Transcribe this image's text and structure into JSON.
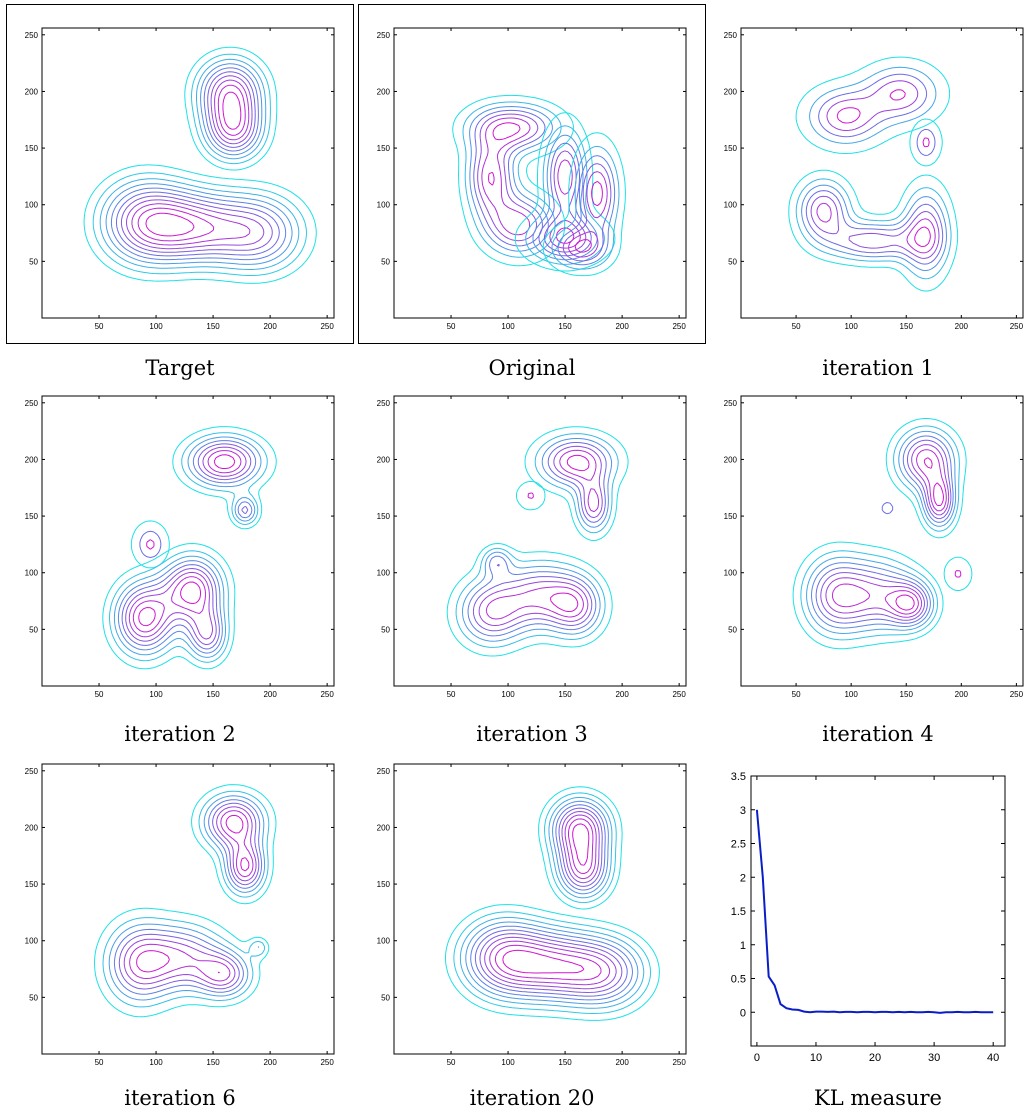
{
  "colors": {
    "outer": "#1EE1E6",
    "mid": "#6C6CE6",
    "inner": "#D214D2",
    "kl_line": "#0A1EC8"
  },
  "panels": [
    {
      "caption": "Target",
      "framed": true,
      "xticks": [
        "50",
        "100",
        "150",
        "200",
        "250"
      ],
      "yticks": [
        "50",
        "100",
        "150",
        "200",
        "250"
      ],
      "blobs": [
        {
          "levels": 11,
          "components": [
            {
              "x": 90,
              "y": 85,
              "sx": 28,
              "sy": 26,
              "w": 1.0
            },
            {
              "x": 135,
              "y": 80,
              "sx": 30,
              "sy": 22,
              "w": 0.9
            },
            {
              "x": 190,
              "y": 75,
              "sx": 28,
              "sy": 24,
              "w": 0.85
            }
          ]
        },
        {
          "levels": 10,
          "components": [
            {
              "x": 165,
              "y": 200,
              "sx": 20,
              "sy": 20,
              "w": 1.0
            },
            {
              "x": 168,
              "y": 165,
              "sx": 18,
              "sy": 18,
              "w": 0.9
            }
          ]
        }
      ]
    },
    {
      "caption": "Original",
      "framed": true,
      "xticks": [
        "50",
        "100",
        "150",
        "200",
        "250"
      ],
      "yticks": [
        "50",
        "100",
        "150",
        "200",
        "250"
      ],
      "blobs": [
        {
          "levels": 7,
          "components": [
            {
              "x": 85,
              "y": 125,
              "sx": 14,
              "sy": 24,
              "w": 1.0
            },
            {
              "x": 105,
              "y": 168,
              "sx": 26,
              "sy": 14,
              "w": 1.0
            },
            {
              "x": 110,
              "y": 82,
              "sx": 20,
              "sy": 18,
              "w": 0.95
            }
          ]
        },
        {
          "levels": 7,
          "components": [
            {
              "x": 150,
              "y": 125,
              "sx": 12,
              "sy": 28,
              "w": 1.0
            },
            {
              "x": 150,
              "y": 70,
              "sx": 22,
              "sy": 14,
              "w": 0.95
            }
          ]
        },
        {
          "levels": 6,
          "components": [
            {
              "x": 178,
              "y": 110,
              "sx": 12,
              "sy": 26,
              "w": 1.0
            },
            {
              "x": 163,
              "y": 62,
              "sx": 16,
              "sy": 12,
              "w": 0.9
            }
          ]
        }
      ]
    },
    {
      "caption": "iteration 1",
      "framed": false,
      "xticks": [
        "50",
        "100",
        "150",
        "200",
        "250"
      ],
      "yticks": [
        "50",
        "100",
        "150",
        "200",
        "250"
      ],
      "blobs": [
        {
          "levels": 5,
          "components": [
            {
              "x": 95,
              "y": 178,
              "sx": 22,
              "sy": 16,
              "w": 1.0
            },
            {
              "x": 145,
              "y": 198,
              "sx": 22,
              "sy": 16,
              "w": 0.95
            }
          ]
        },
        {
          "levels": 3,
          "components": [
            {
              "x": 168,
              "y": 155,
              "sx": 7,
              "sy": 10,
              "w": 1.0
            }
          ]
        },
        {
          "levels": 7,
          "components": [
            {
              "x": 75,
              "y": 95,
              "sx": 16,
              "sy": 18,
              "w": 1.0
            },
            {
              "x": 120,
              "y": 68,
              "sx": 28,
              "sy": 12,
              "w": 0.9
            },
            {
              "x": 168,
              "y": 75,
              "sx": 14,
              "sy": 26,
              "w": 1.0
            }
          ]
        }
      ]
    },
    {
      "caption": "iteration 2",
      "framed": false,
      "xticks": [
        "50",
        "100",
        "150",
        "200",
        "250"
      ],
      "yticks": [
        "50",
        "100",
        "150",
        "200",
        "250"
      ],
      "blobs": [
        {
          "levels": 8,
          "components": [
            {
              "x": 160,
              "y": 198,
              "sx": 22,
              "sy": 15,
              "w": 1.0
            },
            {
              "x": 178,
              "y": 155,
              "sx": 8,
              "sy": 9,
              "w": 0.6
            }
          ]
        },
        {
          "levels": 3,
          "components": [
            {
              "x": 95,
              "y": 125,
              "sx": 8,
              "sy": 10,
              "w": 1.0
            }
          ]
        },
        {
          "levels": 9,
          "components": [
            {
              "x": 90,
              "y": 60,
              "sx": 18,
              "sy": 22,
              "w": 1.0
            },
            {
              "x": 132,
              "y": 85,
              "sx": 18,
              "sy": 20,
              "w": 1.0
            },
            {
              "x": 145,
              "y": 45,
              "sx": 12,
              "sy": 16,
              "w": 0.7
            }
          ]
        }
      ]
    },
    {
      "caption": "iteration 3",
      "framed": false,
      "xticks": [
        "50",
        "100",
        "150",
        "200",
        "250"
      ],
      "yticks": [
        "50",
        "100",
        "150",
        "200",
        "250"
      ],
      "blobs": [
        {
          "levels": 7,
          "components": [
            {
              "x": 160,
              "y": 198,
              "sx": 22,
              "sy": 15,
              "w": 1.0
            },
            {
              "x": 175,
              "y": 160,
              "sx": 10,
              "sy": 16,
              "w": 0.85
            }
          ]
        },
        {
          "levels": 2,
          "components": [
            {
              "x": 120,
              "y": 168,
              "sx": 6,
              "sy": 6,
              "w": 1.0
            }
          ]
        },
        {
          "levels": 8,
          "components": [
            {
              "x": 85,
              "y": 65,
              "sx": 20,
              "sy": 20,
              "w": 1.0
            },
            {
              "x": 128,
              "y": 80,
              "sx": 24,
              "sy": 20,
              "w": 1.0
            },
            {
              "x": 160,
              "y": 70,
              "sx": 16,
              "sy": 18,
              "w": 0.9
            },
            {
              "x": 90,
              "y": 110,
              "sx": 9,
              "sy": 9,
              "w": 0.6
            }
          ]
        }
      ]
    },
    {
      "caption": "iteration 4",
      "framed": false,
      "xticks": [
        "50",
        "100",
        "150",
        "200",
        "250"
      ],
      "yticks": [
        "50",
        "100",
        "150",
        "200",
        "250"
      ],
      "blobs": [
        {
          "levels": 8,
          "components": [
            {
              "x": 168,
              "y": 200,
              "sx": 18,
              "sy": 18,
              "w": 1.0
            },
            {
              "x": 180,
              "y": 163,
              "sx": 10,
              "sy": 16,
              "w": 1.0
            }
          ]
        },
        {
          "levels": 1,
          "components": [
            {
              "x": 133,
              "y": 157,
              "sx": 4,
              "sy": 4,
              "w": 1.0
            }
          ]
        },
        {
          "levels": 2,
          "components": [
            {
              "x": 197,
              "y": 99,
              "sx": 6,
              "sy": 7,
              "w": 1.0
            }
          ]
        },
        {
          "levels": 9,
          "components": [
            {
              "x": 85,
              "y": 80,
              "sx": 20,
              "sy": 24,
              "w": 1.0
            },
            {
              "x": 125,
              "y": 80,
              "sx": 24,
              "sy": 22,
              "w": 0.95
            },
            {
              "x": 155,
              "y": 72,
              "sx": 14,
              "sy": 14,
              "w": 1.0
            }
          ]
        }
      ]
    },
    {
      "caption": "iteration 6",
      "framed": false,
      "xticks": [
        "50",
        "100",
        "150",
        "200",
        "250"
      ],
      "yticks": [
        "50",
        "100",
        "150",
        "200",
        "250"
      ],
      "blobs": [
        {
          "levels": 8,
          "components": [
            {
              "x": 168,
              "y": 205,
              "sx": 18,
              "sy": 16,
              "w": 1.0
            },
            {
              "x": 178,
              "y": 165,
              "sx": 12,
              "sy": 16,
              "w": 0.95
            }
          ]
        },
        {
          "levels": 8,
          "components": [
            {
              "x": 85,
              "y": 80,
              "sx": 20,
              "sy": 24,
              "w": 1.0
            },
            {
              "x": 125,
              "y": 85,
              "sx": 24,
              "sy": 20,
              "w": 0.9
            },
            {
              "x": 160,
              "y": 70,
              "sx": 16,
              "sy": 14,
              "w": 0.9
            },
            {
              "x": 190,
              "y": 94,
              "sx": 6,
              "sy": 6,
              "w": 0.4
            }
          ]
        }
      ]
    },
    {
      "caption": "iteration 20",
      "framed": false,
      "xticks": [
        "50",
        "100",
        "150",
        "200",
        "250"
      ],
      "yticks": [
        "50",
        "100",
        "150",
        "200",
        "250"
      ],
      "blobs": [
        {
          "levels": 11,
          "components": [
            {
              "x": 95,
              "y": 85,
              "sx": 26,
              "sy": 24,
              "w": 1.0
            },
            {
              "x": 140,
              "y": 78,
              "sx": 28,
              "sy": 22,
              "w": 0.9
            },
            {
              "x": 185,
              "y": 72,
              "sx": 26,
              "sy": 22,
              "w": 0.85
            }
          ]
        },
        {
          "levels": 10,
          "components": [
            {
              "x": 163,
              "y": 200,
              "sx": 18,
              "sy": 18,
              "w": 1.0
            },
            {
              "x": 166,
              "y": 163,
              "sx": 16,
              "sy": 18,
              "w": 0.9
            }
          ]
        }
      ]
    }
  ],
  "chart_data": {
    "type": "line",
    "title": "KL measure",
    "xlabel": "",
    "ylabel": "",
    "xlim": [
      -1,
      42
    ],
    "ylim": [
      -0.5,
      3.5
    ],
    "xticks": [
      "0",
      "10",
      "20",
      "30",
      "40"
    ],
    "yticks": [
      "0",
      "0.5",
      "1",
      "1.5",
      "2",
      "2.5",
      "3",
      "3.5"
    ],
    "x": [
      0,
      1,
      2,
      3,
      4,
      5,
      6,
      7,
      8,
      9,
      10,
      11,
      12,
      13,
      14,
      15,
      16,
      17,
      18,
      19,
      20,
      21,
      22,
      23,
      24,
      25,
      26,
      27,
      28,
      29,
      30,
      31,
      32,
      33,
      34,
      35,
      36,
      37,
      38,
      39,
      40
    ],
    "y": [
      3.0,
      2.0,
      0.53,
      0.4,
      0.12,
      0.06,
      0.04,
      0.035,
      0.01,
      0.0,
      0.01,
      0.01,
      0.005,
      0.01,
      0.0,
      0.005,
      0.005,
      0.0,
      0.005,
      0.005,
      0.0,
      0.005,
      0.005,
      0.0,
      0.005,
      0.0,
      0.005,
      0.0,
      0.0,
      0.005,
      0.0,
      -0.01,
      0.0,
      0.0,
      0.005,
      0.0,
      0.0,
      0.005,
      0.0,
      0.0,
      0.0
    ]
  }
}
